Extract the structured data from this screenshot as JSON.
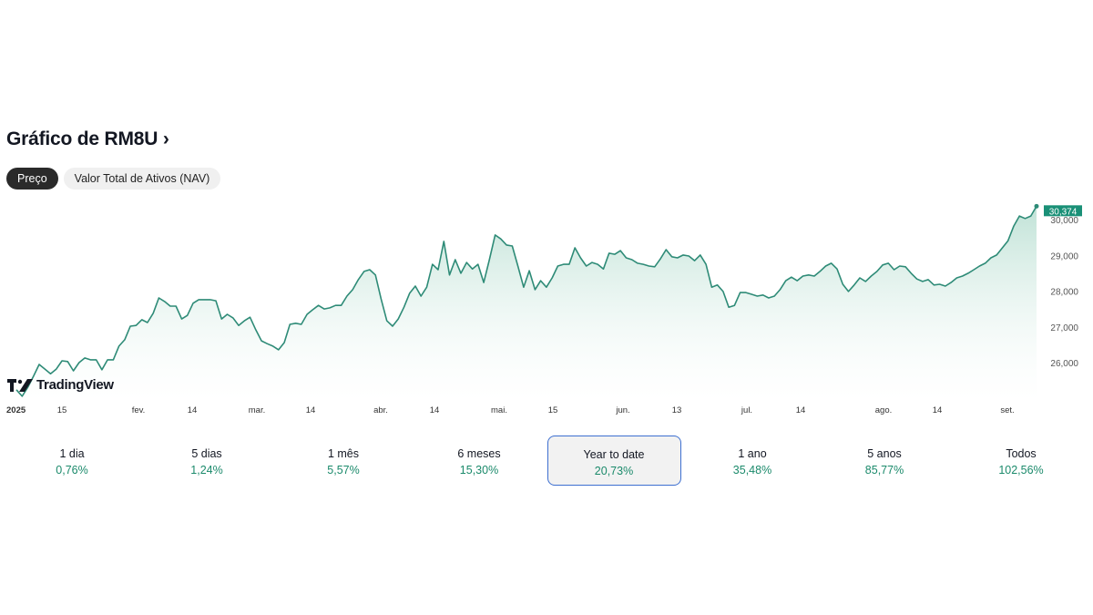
{
  "header": {
    "title": "Gráfico de RM8U",
    "chevron": "›"
  },
  "tabs": [
    {
      "label": "Preço",
      "active": true
    },
    {
      "label": "Valor Total de Ativos (NAV)",
      "active": false
    }
  ],
  "logo": {
    "text": "TradingView"
  },
  "colors": {
    "line": "#2e8b77",
    "fill": "#cde8df",
    "price_tag": "#1a9077",
    "selected_border": "#3d6fd0",
    "positive": "#1b8a6b"
  },
  "chart_data": {
    "type": "area",
    "title": "",
    "ylim": [
      25000,
      30400
    ],
    "y_ticks": [
      "26,000",
      "27,000",
      "28,000",
      "29,000",
      "30,000"
    ],
    "y_tick_values": [
      26000,
      27000,
      28000,
      29000,
      30000
    ],
    "x_ticks": [
      "2025",
      "15",
      "fev.",
      "14",
      "mar.",
      "14",
      "abr.",
      "14",
      "mai.",
      "15",
      "jun.",
      "13",
      "jul.",
      "14",
      "ago.",
      "14",
      "set."
    ],
    "last_value_label": "30,374",
    "grid": false,
    "values": [
      25240,
      25060,
      25310,
      25620,
      25950,
      25820,
      25690,
      25820,
      26050,
      26030,
      25770,
      26000,
      26130,
      26080,
      26080,
      25800,
      26080,
      26080,
      26460,
      26640,
      27020,
      27040,
      27200,
      27120,
      27380,
      27810,
      27710,
      27580,
      27580,
      27220,
      27320,
      27660,
      27760,
      27760,
      27760,
      27730,
      27220,
      27350,
      27250,
      27040,
      27170,
      27270,
      26920,
      26610,
      26530,
      26460,
      26360,
      26560,
      27070,
      27100,
      27070,
      27350,
      27480,
      27600,
      27500,
      27530,
      27600,
      27600,
      27860,
      28040,
      28320,
      28550,
      28600,
      28450,
      27780,
      27170,
      27020,
      27220,
      27550,
      27940,
      28140,
      27860,
      28110,
      28750,
      28600,
      29390,
      28450,
      28880,
      28500,
      28800,
      28620,
      28750,
      28240,
      28880,
      29570,
      29460,
      29290,
      29260,
      28700,
      28110,
      28570,
      28040,
      28290,
      28110,
      28370,
      28700,
      28750,
      28750,
      29210,
      28930,
      28700,
      28800,
      28750,
      28620,
      29060,
      29030,
      29130,
      28930,
      28880,
      28780,
      28750,
      28700,
      28680,
      28900,
      29160,
      28960,
      28930,
      29010,
      28980,
      28850,
      29010,
      28750,
      28110,
      28170,
      27990,
      27550,
      27600,
      27960,
      27960,
      27910,
      27860,
      27890,
      27810,
      27860,
      28040,
      28290,
      28390,
      28290,
      28420,
      28450,
      28420,
      28550,
      28700,
      28780,
      28620,
      28190,
      27990,
      28170,
      28370,
      28270,
      28420,
      28550,
      28730,
      28780,
      28600,
      28700,
      28680,
      28500,
      28340,
      28270,
      28320,
      28170,
      28190,
      28140,
      28240,
      28370,
      28420,
      28500,
      28600,
      28700,
      28780,
      28930,
      29010,
      29210,
      29410,
      29820,
      30100,
      30030,
      30100,
      30374
    ]
  },
  "periods": [
    {
      "label": "1 dia",
      "value": "0,76%"
    },
    {
      "label": "5 dias",
      "value": "1,24%"
    },
    {
      "label": "1 mês",
      "value": "5,57%"
    },
    {
      "label": "6 meses",
      "value": "15,30%"
    },
    {
      "label": "Year to date",
      "value": "20,73%",
      "selected": true
    },
    {
      "label": "1 ano",
      "value": "35,48%"
    },
    {
      "label": "5 anos",
      "value": "85,77%"
    },
    {
      "label": "Todos",
      "value": "102,56%"
    }
  ]
}
